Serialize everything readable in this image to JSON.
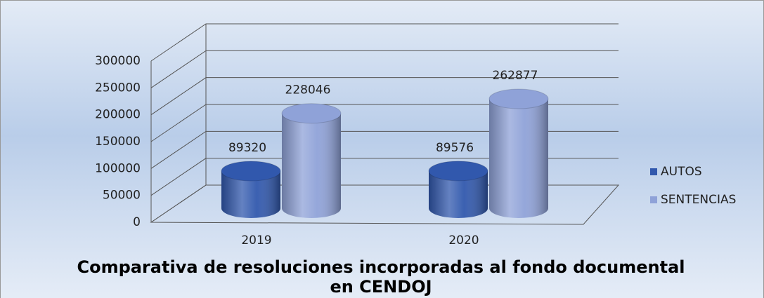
{
  "chart_data": {
    "type": "bar3d",
    "title": "Comparativa de resoluciones incorporadas al fondo documental en CENDOJ",
    "categories": [
      "2019",
      "2020"
    ],
    "series": [
      {
        "name": "AUTOS",
        "color": "#3158ad",
        "values": [
          89320,
          89576
        ]
      },
      {
        "name": "SENTENCIAS",
        "color": "#8fa2d8",
        "values": [
          228046,
          262877
        ]
      }
    ],
    "ylim": [
      0,
      300000
    ],
    "yticks": [
      0,
      50000,
      100000,
      150000,
      200000,
      250000,
      300000
    ],
    "grid": true,
    "legend": "right"
  }
}
